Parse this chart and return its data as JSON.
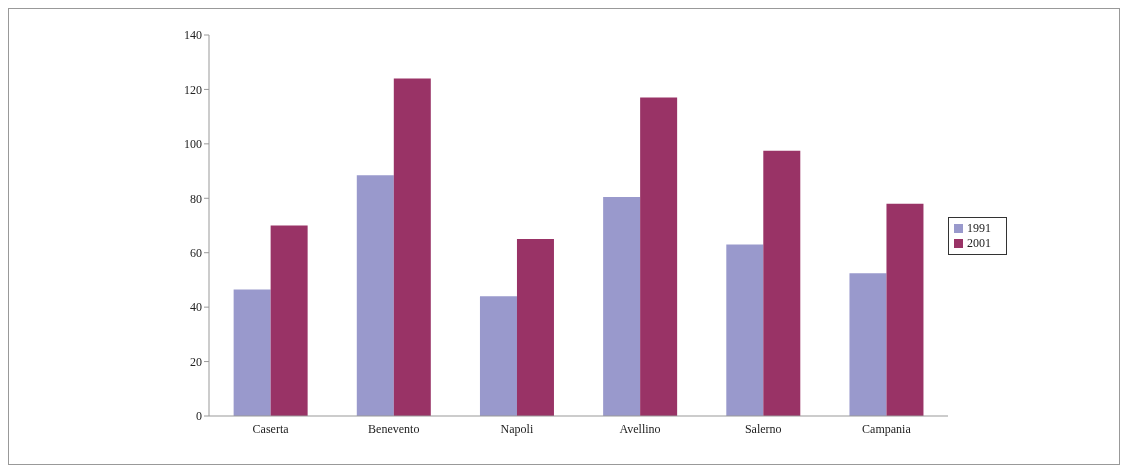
{
  "chart_data": {
    "type": "bar",
    "categories": [
      "Caserta",
      "Benevento",
      "Napoli",
      "Avellino",
      "Salerno",
      "Campania"
    ],
    "series": [
      {
        "name": "1991",
        "color": "#9999cc",
        "values": [
          46.5,
          88.5,
          44,
          80.5,
          63,
          52.5
        ]
      },
      {
        "name": "2001",
        "color": "#993366",
        "values": [
          70,
          124,
          65,
          117,
          97.5,
          78
        ]
      }
    ],
    "ylim": [
      0,
      140
    ],
    "yticks": [
      0,
      20,
      40,
      60,
      80,
      100,
      120,
      140
    ],
    "grid": false,
    "legend": "right"
  }
}
